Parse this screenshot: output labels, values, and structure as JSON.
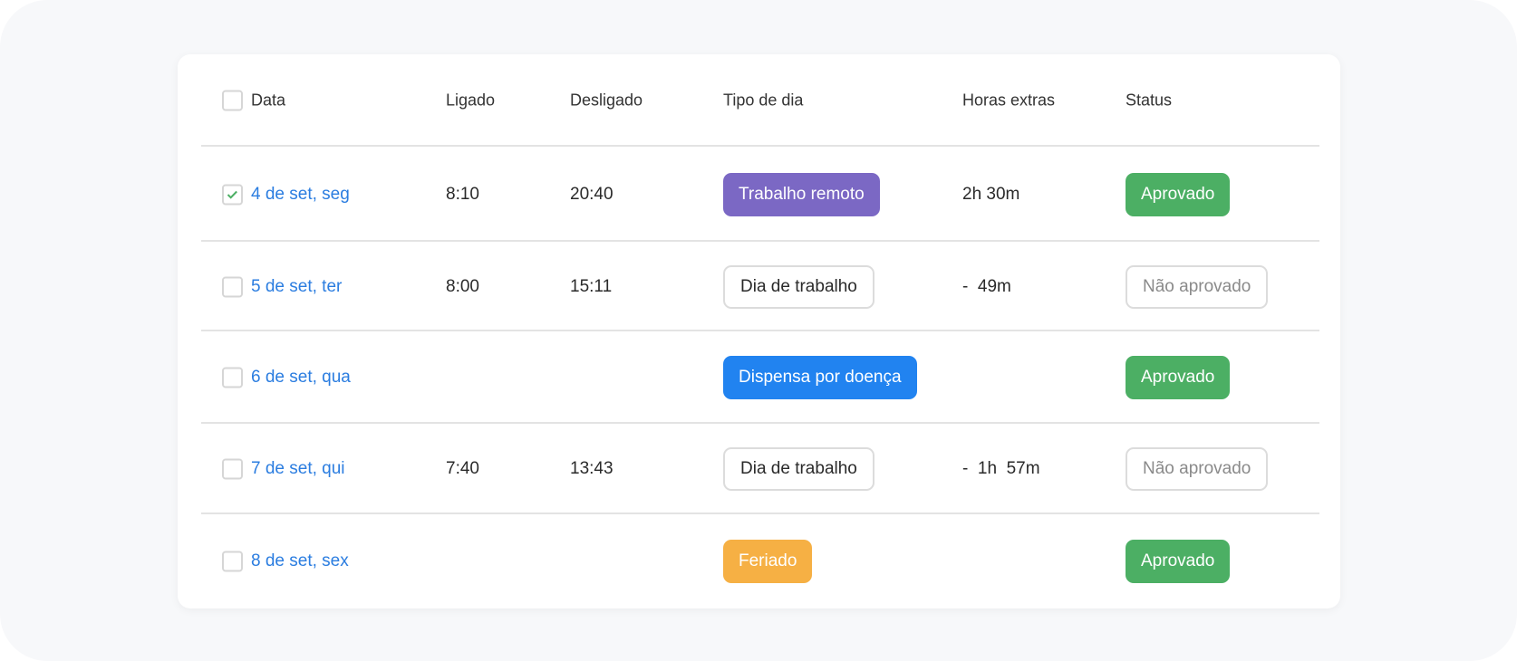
{
  "colors": {
    "link": "#2b7de0",
    "approved": "#4caf64",
    "remote": "#7b68c4",
    "sick": "#2183f0",
    "holiday": "#f6b044",
    "check": "#4caf64"
  },
  "header": {
    "date": "Data",
    "on": "Ligado",
    "off": "Desligado",
    "day_type": "Tipo de dia",
    "overtime": "Horas extras",
    "status": "Status"
  },
  "rows": [
    {
      "checked": true,
      "date": "4 de set, seg",
      "on": "8:10",
      "off": "20:40",
      "day_type": "Trabalho remoto",
      "day_style": "remote",
      "overtime": "2h 30m",
      "status": "Aprovado",
      "status_style": "approved"
    },
    {
      "checked": false,
      "date": "5 de set, ter",
      "on": "8:00",
      "off": "15:11",
      "day_type": "Dia de trabalho",
      "day_style": "outline",
      "overtime": "-  49m",
      "status": "Não aprovado",
      "status_style": "outline"
    },
    {
      "checked": false,
      "date": "6 de set, qua",
      "on": "",
      "off": "",
      "day_type": "Dispensa por doença",
      "day_style": "sick",
      "overtime": "",
      "status": "Aprovado",
      "status_style": "approved"
    },
    {
      "checked": false,
      "date": "7 de set, qui",
      "on": "7:40",
      "off": "13:43",
      "day_type": "Dia de trabalho",
      "day_style": "outline",
      "overtime": "-  1h  57m",
      "status": "Não aprovado",
      "status_style": "outline"
    },
    {
      "checked": false,
      "date": "8 de set, sex",
      "on": "",
      "off": "",
      "day_type": "Feriado",
      "day_style": "holiday",
      "overtime": "",
      "status": "Aprovado",
      "status_style": "approved"
    }
  ]
}
